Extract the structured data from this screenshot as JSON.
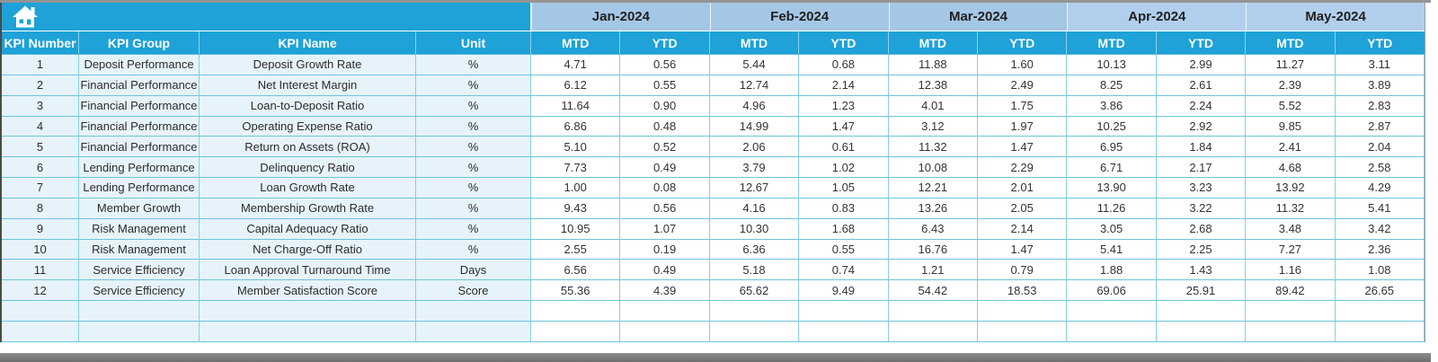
{
  "app": {
    "home_button": "home"
  },
  "colors": {
    "header_blue": "#1ea2d8",
    "month_band_blue_jan_mar": "#a5c7e6",
    "month_band_blue_apr_may": "#b1cfed",
    "left_column_bg": "#e7f3fa",
    "grid_line_cyan": "#6cc5da",
    "bottom_bar_gray": "#7e7e7e"
  },
  "table": {
    "left_headers": [
      "KPI Number",
      "KPI Group",
      "KPI Name",
      "Unit"
    ],
    "months": [
      "Jan-2024",
      "Feb-2024",
      "Mar-2024",
      "Apr-2024",
      "May-2024"
    ],
    "sub_headers": [
      "MTD",
      "YTD"
    ],
    "rows": [
      {
        "number": "1",
        "group": "Deposit Performance",
        "name": "Deposit Growth Rate",
        "unit": "%",
        "values": [
          "4.71",
          "0.56",
          "5.44",
          "0.68",
          "11.88",
          "1.60",
          "10.13",
          "2.99",
          "11.27",
          "3.11"
        ]
      },
      {
        "number": "2",
        "group": "Financial Performance",
        "name": "Net Interest Margin",
        "unit": "%",
        "values": [
          "6.12",
          "0.55",
          "12.74",
          "2.14",
          "12.38",
          "2.49",
          "8.25",
          "2.61",
          "2.39",
          "3.89"
        ]
      },
      {
        "number": "3",
        "group": "Financial Performance",
        "name": "Loan-to-Deposit Ratio",
        "unit": "%",
        "values": [
          "11.64",
          "0.90",
          "4.96",
          "1.23",
          "4.01",
          "1.75",
          "3.86",
          "2.24",
          "5.52",
          "2.83"
        ]
      },
      {
        "number": "4",
        "group": "Financial Performance",
        "name": "Operating Expense Ratio",
        "unit": "%",
        "values": [
          "6.86",
          "0.48",
          "14.99",
          "1.47",
          "3.12",
          "1.97",
          "10.25",
          "2.92",
          "9.85",
          "2.87"
        ]
      },
      {
        "number": "5",
        "group": "Financial Performance",
        "name": "Return on Assets (ROA)",
        "unit": "%",
        "values": [
          "5.10",
          "0.52",
          "2.06",
          "0.61",
          "11.32",
          "1.47",
          "6.95",
          "1.84",
          "2.41",
          "2.04"
        ]
      },
      {
        "number": "6",
        "group": "Lending Performance",
        "name": "Delinquency Ratio",
        "unit": "%",
        "values": [
          "7.73",
          "0.49",
          "3.79",
          "1.02",
          "10.08",
          "2.29",
          "6.71",
          "2.17",
          "4.68",
          "2.58"
        ]
      },
      {
        "number": "7",
        "group": "Lending Performance",
        "name": "Loan Growth Rate",
        "unit": "%",
        "values": [
          "1.00",
          "0.08",
          "12.67",
          "1.05",
          "12.21",
          "2.01",
          "13.90",
          "3.23",
          "13.92",
          "4.29"
        ]
      },
      {
        "number": "8",
        "group": "Member Growth",
        "name": "Membership Growth Rate",
        "unit": "%",
        "values": [
          "9.43",
          "0.56",
          "4.16",
          "0.83",
          "13.26",
          "2.05",
          "11.26",
          "3.22",
          "11.32",
          "5.41"
        ]
      },
      {
        "number": "9",
        "group": "Risk Management",
        "name": "Capital Adequacy Ratio",
        "unit": "%",
        "values": [
          "10.95",
          "1.07",
          "10.30",
          "1.68",
          "6.43",
          "2.14",
          "3.05",
          "2.68",
          "3.48",
          "3.42"
        ]
      },
      {
        "number": "10",
        "group": "Risk Management",
        "name": "Net Charge-Off Ratio",
        "unit": "%",
        "values": [
          "2.55",
          "0.19",
          "6.36",
          "0.55",
          "16.76",
          "1.47",
          "5.41",
          "2.25",
          "7.27",
          "2.36"
        ]
      },
      {
        "number": "11",
        "group": "Service Efficiency",
        "name": "Loan Approval Turnaround Time",
        "unit": "Days",
        "values": [
          "6.56",
          "0.49",
          "5.18",
          "0.74",
          "1.21",
          "0.79",
          "1.88",
          "1.43",
          "1.16",
          "1.08"
        ]
      },
      {
        "number": "12",
        "group": "Service Efficiency",
        "name": "Member Satisfaction Score",
        "unit": "Score",
        "values": [
          "55.36",
          "4.39",
          "65.62",
          "9.49",
          "54.42",
          "18.53",
          "69.06",
          "25.91",
          "89.42",
          "26.65"
        ]
      }
    ],
    "empty_row_count": 2
  }
}
